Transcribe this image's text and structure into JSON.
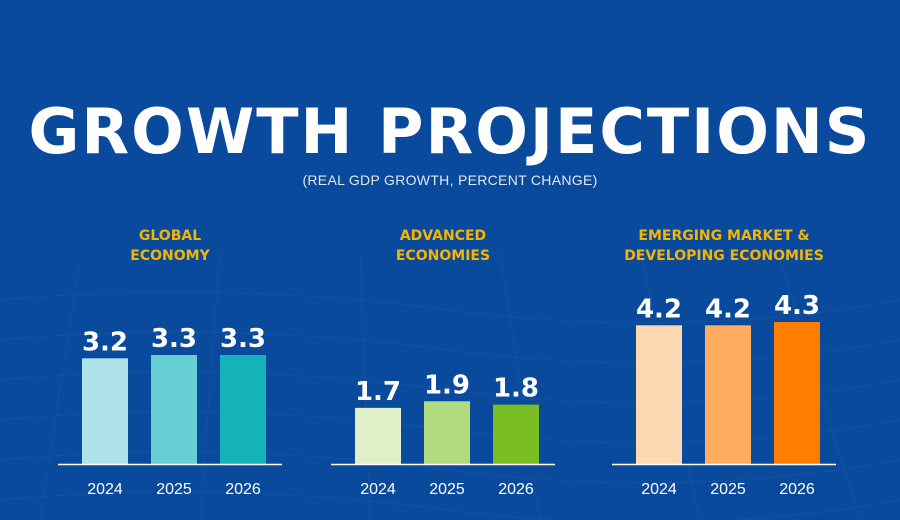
{
  "title": "GROWTH PROJECTIONS",
  "subtitle": "(REAL GDP GROWTH, PERCENT CHANGE)",
  "colors": {
    "background": "#0a4a9c",
    "panel_title": "#f5b400",
    "text": "#ffffff"
  },
  "chart_data": [
    {
      "type": "bar",
      "title_lines": [
        "GLOBAL",
        "ECONOMY"
      ],
      "categories": [
        "2024",
        "2025",
        "2026"
      ],
      "values": [
        3.2,
        3.3,
        3.3
      ],
      "value_labels": [
        "3.2",
        "3.3",
        "3.3"
      ],
      "colors": [
        "#ade3e8",
        "#66cfd4",
        "#13b3b9"
      ],
      "ylim": [
        0,
        4.3
      ],
      "grid": false
    },
    {
      "type": "bar",
      "title_lines": [
        "ADVANCED",
        "ECONOMIES"
      ],
      "categories": [
        "2024",
        "2025",
        "2026"
      ],
      "values": [
        1.7,
        1.9,
        1.8
      ],
      "value_labels": [
        "1.7",
        "1.9",
        "1.8"
      ],
      "colors": [
        "#dff0c6",
        "#b2da7e",
        "#78bd22"
      ],
      "ylim": [
        0,
        4.3
      ],
      "grid": false
    },
    {
      "type": "bar",
      "title_lines": [
        "EMERGING MARKET &",
        "DEVELOPING ECONOMIES"
      ],
      "categories": [
        "2024",
        "2025",
        "2026"
      ],
      "values": [
        4.2,
        4.2,
        4.3
      ],
      "value_labels": [
        "4.2",
        "4.2",
        "4.3"
      ],
      "colors": [
        "#fdd8b2",
        "#ffab60",
        "#ff7e00"
      ],
      "ylim": [
        0,
        4.3
      ],
      "grid": false
    }
  ]
}
